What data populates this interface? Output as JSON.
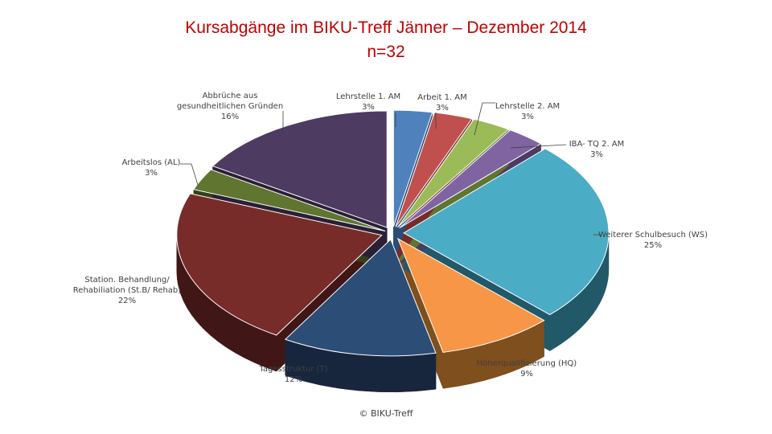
{
  "chart_data": {
    "type": "pie",
    "title": "Kursabgänge im BIKU-Treff Jänner – Dezember 2014",
    "subtitle": "n=32",
    "slices": [
      {
        "label": "Lehrstelle 1. AM",
        "value": 3,
        "pct_text": "3%",
        "color": "#4f81bd",
        "side": "#2c4d75"
      },
      {
        "label": "Arbeit 1. AM",
        "value": 3,
        "pct_text": "3%",
        "color": "#c0504d",
        "side": "#772c2a"
      },
      {
        "label": "Lehrstelle 2. AM",
        "value": 3,
        "pct_text": "3%",
        "color": "#9bbb59",
        "side": "#5f7530"
      },
      {
        "label": "IBA- TQ 2. AM",
        "value": 3,
        "pct_text": "3%",
        "color": "#8064a2",
        "side": "#4d3b62"
      },
      {
        "label": "Weiterer Schulbesuch (WS)",
        "value": 25,
        "pct_text": "25%",
        "color": "#4bacc6",
        "side": "#215968"
      },
      {
        "label": "Höherqualifizierung (HQ)",
        "value": 9,
        "pct_text": "9%",
        "color": "#f79646",
        "side": "#7f4f1d"
      },
      {
        "label": "Tagesstruktur (T)",
        "value": 12,
        "pct_text": "12%",
        "color": "#2c4d75",
        "side": "#17263c"
      },
      {
        "label": "Station. Behandlung/ Rehabiliation (St.B/ Rehab)",
        "value": 22,
        "pct_text": "22%",
        "color": "#772c2a",
        "side": "#401716"
      },
      {
        "label": "Arbeitslos (AL)",
        "value": 3,
        "pct_text": "3%",
        "color": "#5f7530",
        "side": "#34411a"
      },
      {
        "label": "Abbrüche aus gesundheitlichen Gründen",
        "value": 16,
        "pct_text": "16%",
        "color": "#4d3b62",
        "side": "#2a2036"
      }
    ]
  },
  "footer": "© BIKU-Treff"
}
